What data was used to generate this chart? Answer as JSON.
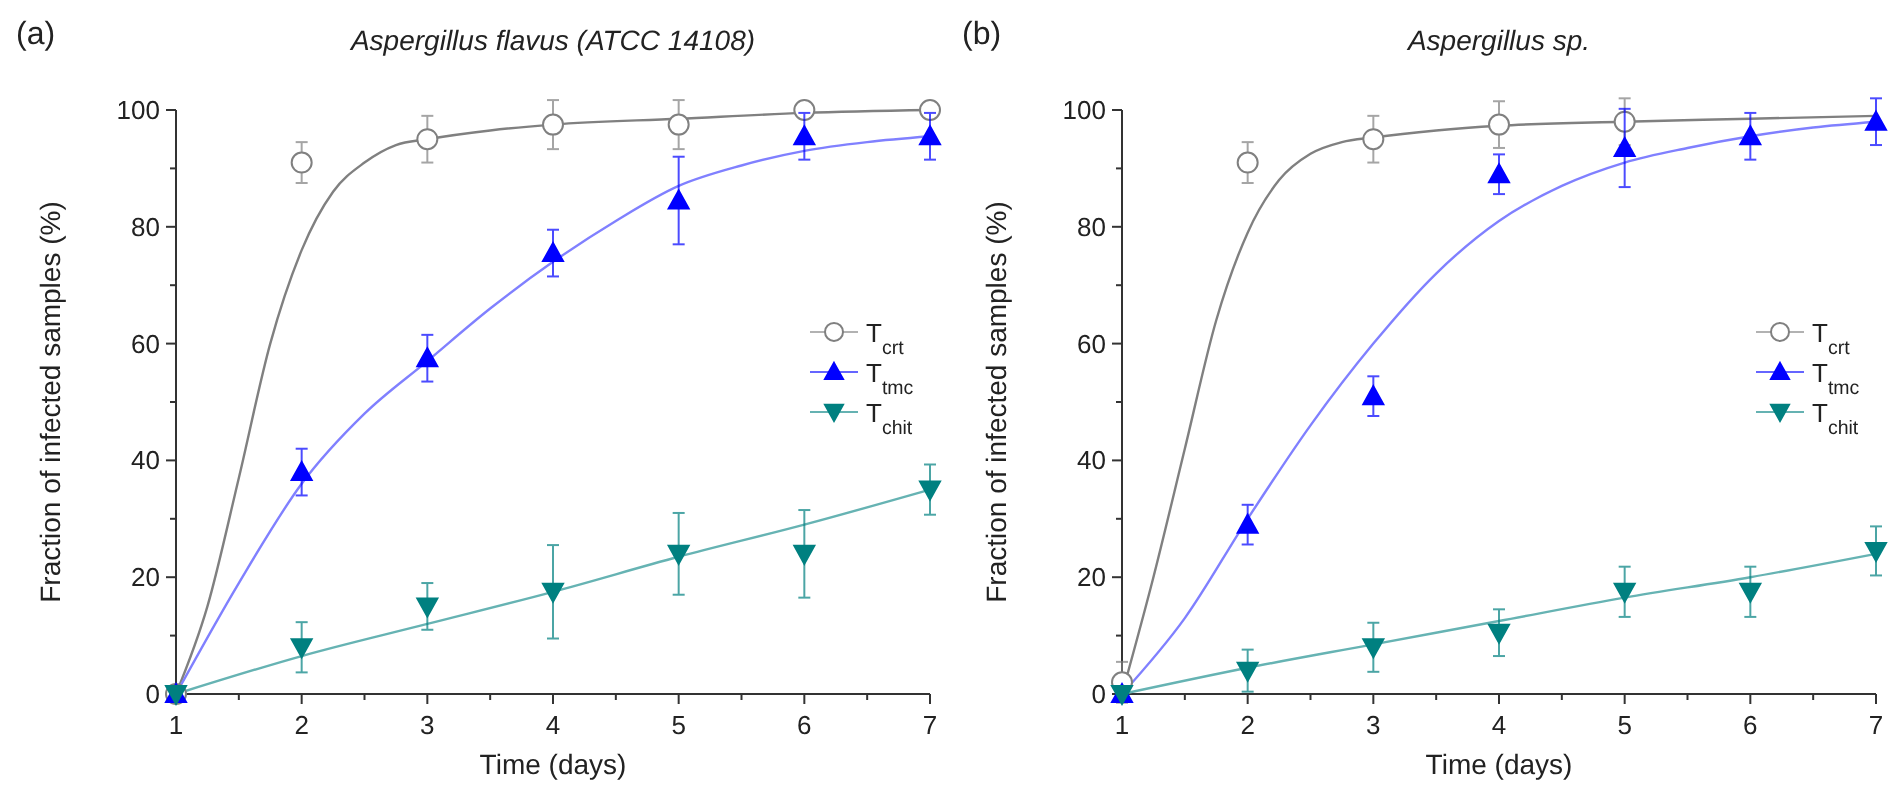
{
  "chart_data": [
    {
      "type": "scatter",
      "title": "Aspergillus flavus (ATCC 14108)",
      "xlabel": "Time (days)",
      "ylabel": "Fraction of infected samples (%)",
      "annotations": [
        "(a)"
      ],
      "xlim": [
        1,
        7
      ],
      "ylim": [
        0,
        100
      ],
      "xticks": [
        1,
        {
          "value": 1.5,
          "label": null
        },
        2,
        {
          "value": 2.5,
          "label": null
        },
        3,
        {
          "value": 3.5,
          "label": null
        },
        4,
        {
          "value": 4.5,
          "label": null
        },
        5,
        {
          "value": 5.5,
          "label": null
        },
        6,
        {
          "value": 6.5,
          "label": null
        },
        7
      ],
      "yticks": [
        0,
        {
          "value": 10,
          "label": null
        },
        20,
        {
          "value": 30,
          "label": null
        },
        40,
        {
          "value": 50,
          "label": null
        },
        60,
        {
          "value": 70,
          "label": null
        },
        80,
        {
          "value": 90,
          "label": null
        },
        100
      ],
      "grid": false,
      "legend": "right",
      "x": [
        1,
        2,
        3,
        4,
        5,
        6,
        7
      ],
      "series": [
        {
          "type": "line",
          "color": "#808080",
          "x": [
            1,
            1.25,
            1.5,
            1.75,
            2,
            2.25,
            2.5,
            2.75,
            3,
            3.5,
            4,
            5,
            6,
            7
          ],
          "values": [
            0,
            15,
            37,
            60,
            76,
            86,
            91,
            94,
            95,
            96.5,
            97.5,
            98.5,
            99.5,
            100
          ]
        },
        {
          "type": "line",
          "color": "#8080ff",
          "x": [
            1,
            1.5,
            2,
            2.5,
            3,
            3.5,
            4,
            4.5,
            5,
            5.5,
            6,
            6.5,
            7
          ],
          "values": [
            0,
            19,
            36,
            48,
            57,
            66,
            74,
            81,
            87,
            90.5,
            93,
            94.5,
            95.5
          ]
        },
        {
          "type": "line",
          "color": "#66b3b3",
          "x": [
            1,
            2,
            3,
            4,
            5,
            6,
            7
          ],
          "values": [
            0,
            6.5,
            12,
            17.5,
            23.5,
            29,
            35
          ]
        },
        {
          "name": "T$_{crt}$",
          "color": "#808080",
          "marker": "circle",
          "values": [
            0,
            91,
            95,
            97.5,
            97.5,
            100,
            100
          ],
          "errors": [
            null,
            3.5,
            4,
            4.2,
            4.2,
            null,
            null
          ]
        },
        {
          "name": "T$_{tmc}$",
          "color": "#0000ff",
          "marker": "triangle",
          "values": [
            0,
            38,
            57.5,
            75.5,
            84.5,
            95.5,
            95.5
          ],
          "errors": [
            null,
            4,
            4,
            4,
            7.5,
            4,
            4
          ]
        },
        {
          "name": "T$_{chit}$",
          "color": "#008080",
          "marker": "triangle-down",
          "values": [
            0,
            8,
            15,
            17.5,
            24,
            24,
            35
          ],
          "errors": [
            null,
            4.3,
            4,
            8,
            7,
            7.5,
            4.3
          ]
        }
      ]
    },
    {
      "type": "scatter",
      "title": "Aspergillus sp.",
      "xlabel": "Time (days)",
      "ylabel": "Fraction of infected samples (%)",
      "annotations": [
        "(b)"
      ],
      "xlim": [
        1,
        7
      ],
      "ylim": [
        0,
        100
      ],
      "xticks": [
        1,
        {
          "value": 1.5,
          "label": null
        },
        2,
        {
          "value": 2.5,
          "label": null
        },
        3,
        {
          "value": 3.5,
          "label": null
        },
        4,
        {
          "value": 4.5,
          "label": null
        },
        5,
        {
          "value": 5.5,
          "label": null
        },
        6,
        {
          "value": 6.5,
          "label": null
        },
        7
      ],
      "yticks": [
        0,
        {
          "value": 10,
          "label": null
        },
        20,
        {
          "value": 30,
          "label": null
        },
        40,
        {
          "value": 50,
          "label": null
        },
        60,
        {
          "value": 70,
          "label": null
        },
        80,
        {
          "value": 90,
          "label": null
        },
        100
      ],
      "grid": false,
      "legend": "right",
      "x": [
        1,
        2,
        3,
        4,
        5,
        6,
        7
      ],
      "series": [
        {
          "type": "line",
          "color": "#808080",
          "x": [
            1,
            1.25,
            1.5,
            1.75,
            2,
            2.25,
            2.5,
            2.75,
            3,
            3.5,
            4,
            5,
            6,
            7
          ],
          "values": [
            0,
            20,
            42,
            64,
            79,
            88,
            92.5,
            94.5,
            95.3,
            96.5,
            97.3,
            98,
            98.5,
            99
          ]
        },
        {
          "type": "line",
          "color": "#8080ff",
          "x": [
            1,
            1.5,
            2,
            2.5,
            3,
            3.5,
            4,
            4.5,
            5,
            5.5,
            6,
            6.5,
            7
          ],
          "values": [
            0,
            13,
            30,
            46,
            60,
            72,
            81,
            87,
            91,
            93.5,
            95.5,
            97,
            98
          ]
        },
        {
          "type": "line",
          "color": "#66b3b3",
          "x": [
            1,
            2,
            3,
            4,
            5,
            6,
            7
          ],
          "values": [
            0,
            4.5,
            8.5,
            12.5,
            16.5,
            20,
            24
          ]
        },
        {
          "name": "T$_{crt}$",
          "color": "#808080",
          "marker": "circle",
          "values": [
            2,
            91,
            95,
            97.5,
            98,
            null,
            null
          ],
          "errors": [
            3.5,
            3.5,
            4,
            4,
            4,
            null,
            null
          ]
        },
        {
          "name": "T$_{tmc}$",
          "color": "#0000ff",
          "marker": "triangle",
          "values": [
            0,
            29,
            51,
            89,
            93.5,
            95.5,
            98
          ],
          "errors": [
            null,
            3.4,
            3.4,
            3.4,
            6.7,
            4,
            4
          ]
        },
        {
          "name": "T$_{chit}$",
          "color": "#008080",
          "marker": "triangle-down",
          "values": [
            0,
            4,
            8,
            10.5,
            17.5,
            17.5,
            24.5
          ],
          "errors": [
            null,
            3.6,
            4.2,
            4,
            4.3,
            4.3,
            4.2
          ]
        }
      ]
    }
  ]
}
